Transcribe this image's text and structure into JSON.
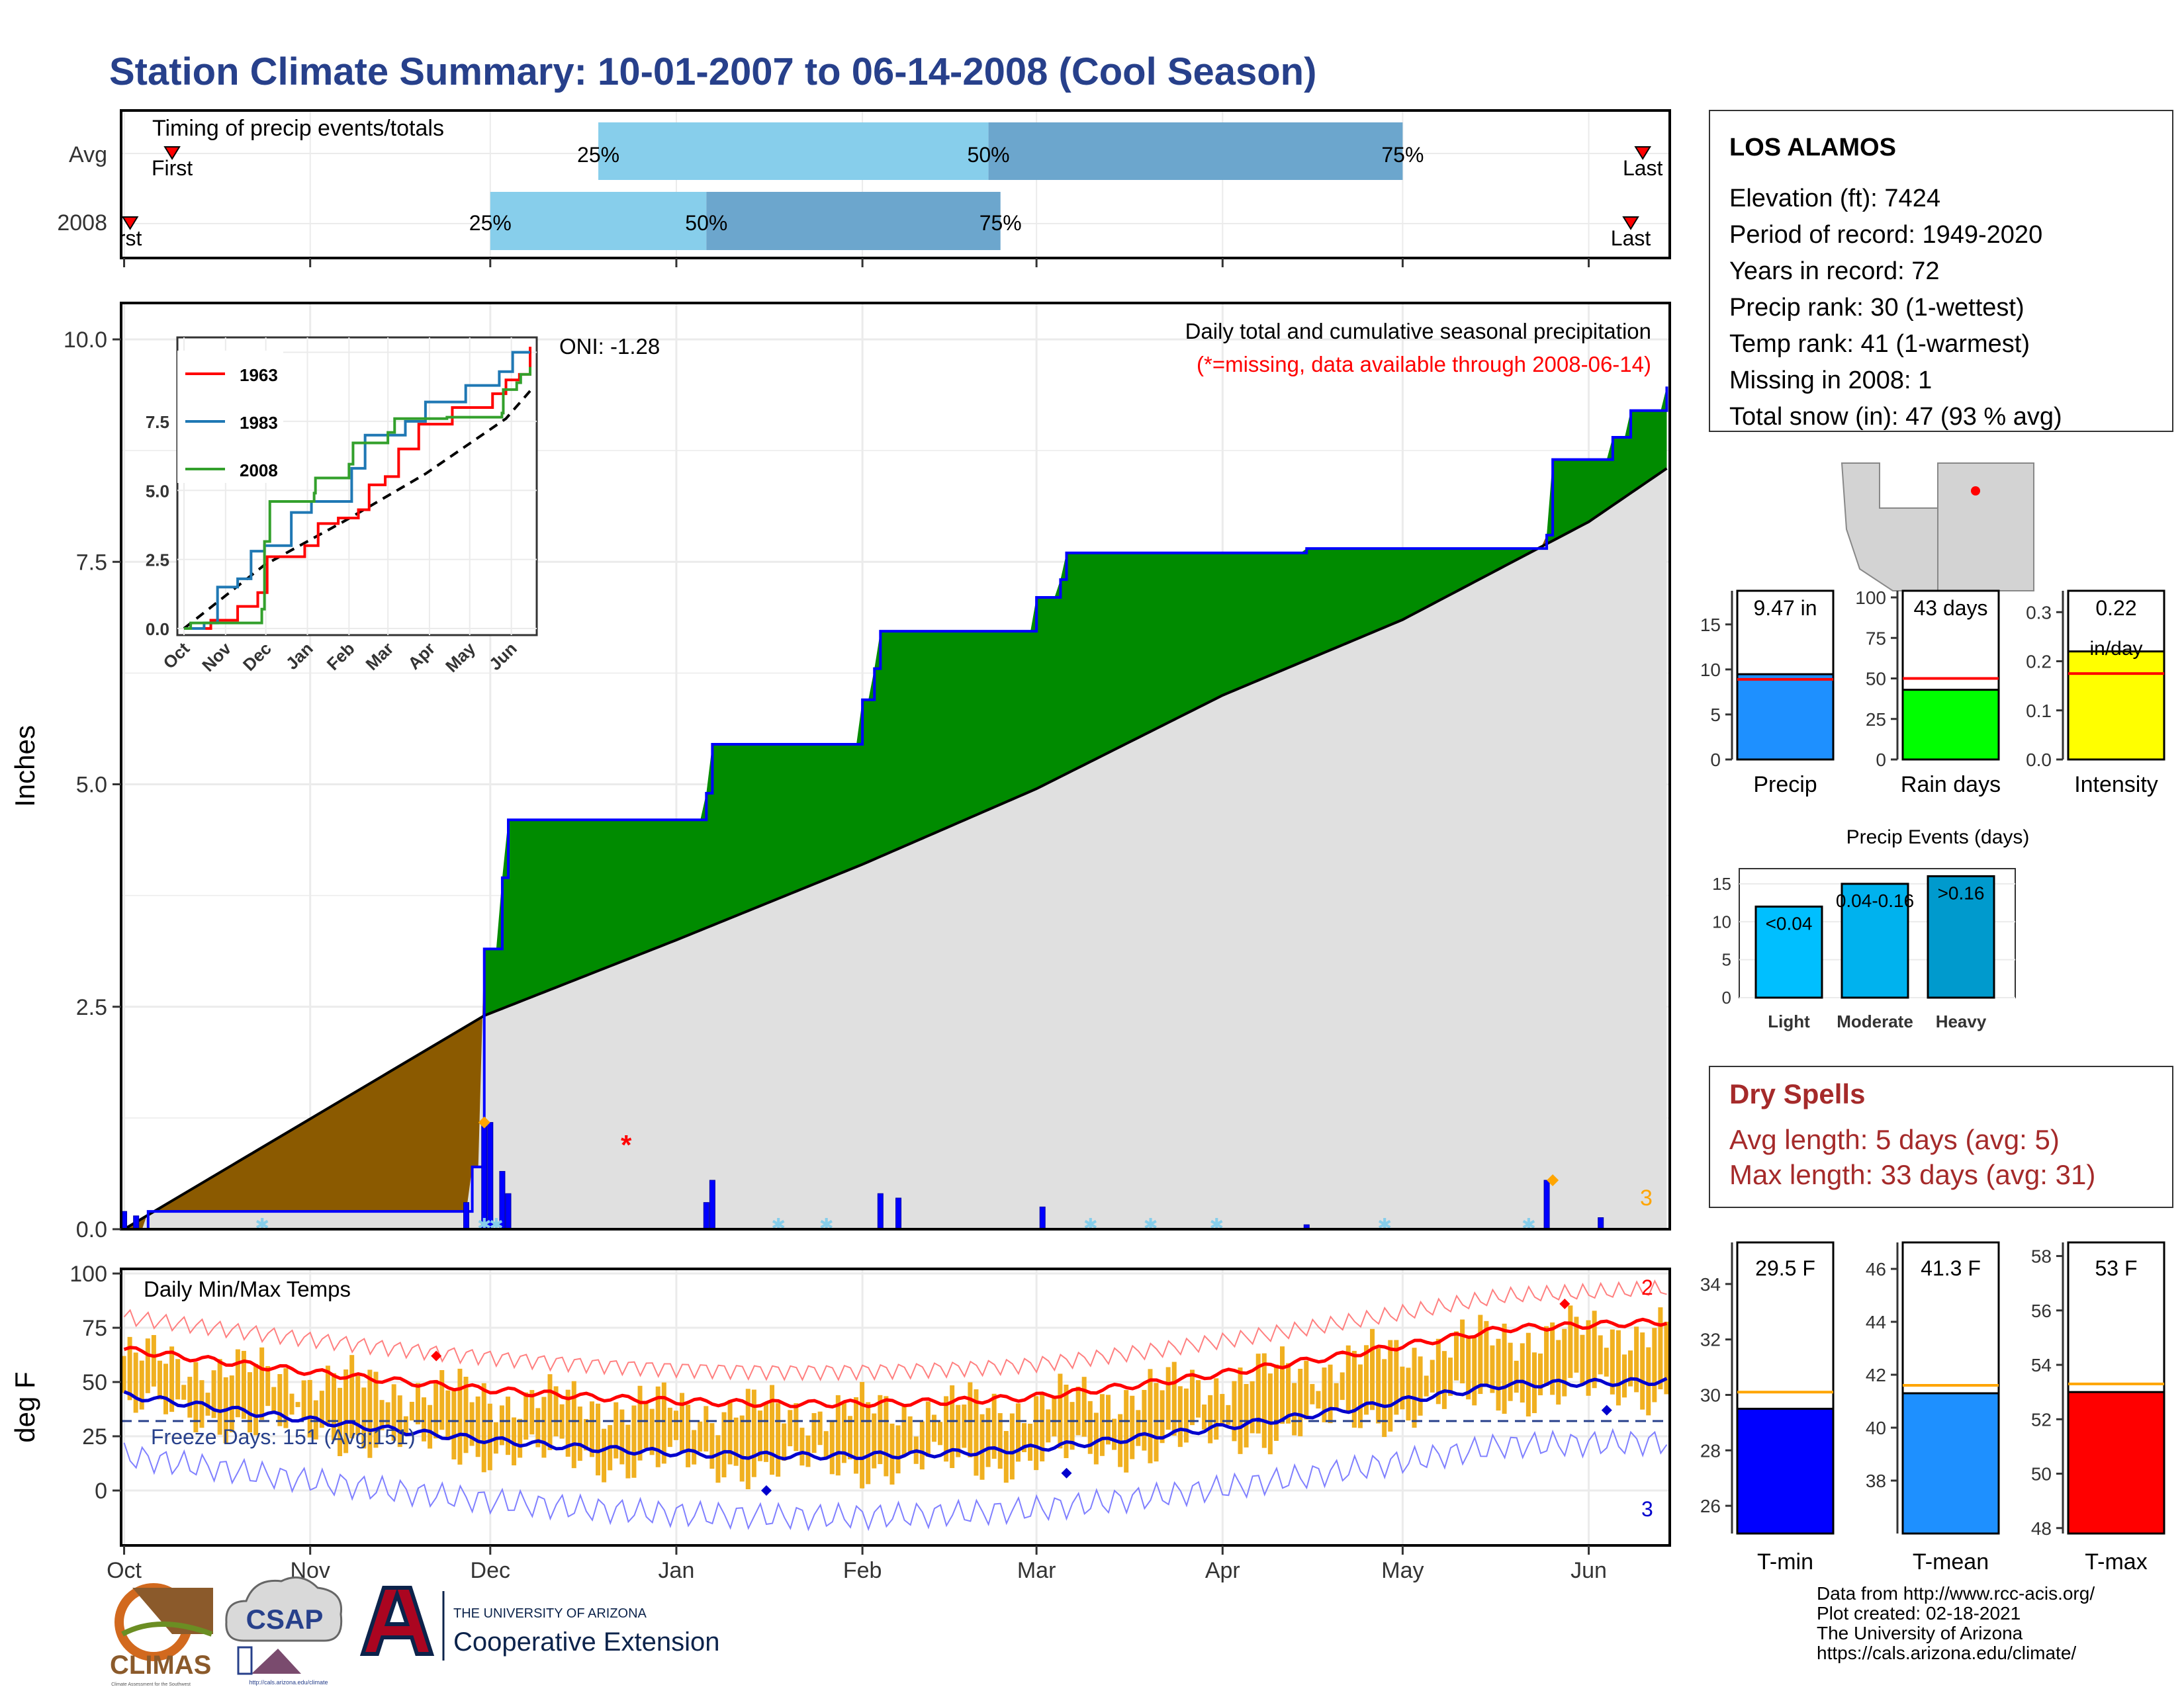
{
  "title": "Station Climate Summary: 10-01-2007 to 06-14-2008 (Cool Season)",
  "colors": {
    "title": "#27408b",
    "light_blue": "#87ceeb",
    "mid_blue": "#6ca6cd",
    "green": "#008b00",
    "brown": "#8b5a00",
    "gray_fill": "#e0e0e0",
    "bar_blue": "#0000ff",
    "orange_bar": "#f0b020",
    "red": "#ff0000",
    "dark_red": "#a52a2a",
    "precip_blue": "#1e90ff",
    "rain_green": "#00ff00",
    "intensity_yellow": "#ffff00",
    "light_evt": "#00bfff",
    "mod_evt": "#00b2ee",
    "heavy_evt": "#009acd"
  },
  "timing": {
    "label": "Timing of precip events/totals",
    "rows": [
      {
        "name": "Avg",
        "first_label": "First",
        "last_label": "Last",
        "p25_label": "25%",
        "p50_label": "50%",
        "p75_label": "75%",
        "first_day": 8,
        "last_day": 253,
        "p25_day": 79,
        "p50_day": 144,
        "p75_day": 213
      },
      {
        "name": "2008",
        "first_label": "rst",
        "last_label": "Last",
        "p25_label": "25%",
        "p50_label": "50%",
        "p75_label": "75%",
        "first_day": 1,
        "last_day": 251,
        "p25_day": 61,
        "p50_day": 97,
        "p75_day": 146
      }
    ]
  },
  "precip_panel": {
    "ylabel": "Inches",
    "subtitle": "Daily total and cumulative seasonal precipitation",
    "missing_note": "(*=missing, data available through 2008-06-14)",
    "oni": "ONI: -1.28",
    "missing_marker": "*",
    "corner_count": "3"
  },
  "inset": {
    "legend": [
      {
        "name": "1963",
        "color": "#ff0000"
      },
      {
        "name": "1983",
        "color": "#1f78b4"
      },
      {
        "name": "2008",
        "color": "#33a02c"
      }
    ],
    "yticks": [
      "0.0",
      "2.5",
      "5.0",
      "7.5"
    ],
    "xticks": [
      "Oct",
      "Nov",
      "Dec",
      "Jan",
      "Feb",
      "Mar",
      "Apr",
      "May",
      "Jun"
    ]
  },
  "temp_panel": {
    "label": "Daily Min/Max Temps",
    "ylabel": "deg F",
    "freeze_text": "Freeze Days: 151 (Avg:151)",
    "count_max": "2",
    "count_min": "3"
  },
  "months": [
    "Oct",
    "Nov",
    "Dec",
    "Jan",
    "Feb",
    "Mar",
    "Apr",
    "May",
    "Jun"
  ],
  "station": {
    "name": "LOS ALAMOS",
    "lines": [
      "Elevation (ft): 7424",
      "Period of record: 1949-2020",
      "Years in record: 72",
      "Precip rank: 30 (1-wettest)",
      "Temp rank: 41 (1-warmest)",
      "Missing in 2008: 1",
      "Total snow (in): 47 (93 % avg)"
    ]
  },
  "summary_bars": [
    {
      "name": "Precip",
      "value_label": "9.47 in",
      "value": 9.47,
      "avg": 8.9,
      "max": 18,
      "ticks": [
        "0",
        "5",
        "10",
        "15"
      ],
      "tick_vals": [
        0,
        5,
        10,
        15
      ]
    },
    {
      "name": "Rain days",
      "value_label": "43 days",
      "value": 43,
      "avg": 50,
      "max": 100,
      "ticks": [
        "0",
        "25",
        "50",
        "75",
        "100"
      ],
      "tick_vals": [
        0,
        25,
        50,
        75,
        100
      ]
    },
    {
      "name": "Intensity",
      "value_label": "0.22",
      "unit_label": "in/day",
      "value": 0.22,
      "avg": 0.175,
      "max": 0.33,
      "ticks": [
        "0.0",
        "0.1",
        "0.2",
        "0.3"
      ],
      "tick_vals": [
        0,
        0.1,
        0.2,
        0.3
      ]
    }
  ],
  "events": {
    "title": "Precip Events (days)",
    "bars": [
      {
        "name": "Light",
        "label": "<0.04",
        "value": 12
      },
      {
        "name": "Moderate",
        "label": "0.04-0.16",
        "value": 15
      },
      {
        "name": "Heavy",
        "label": ">0.16",
        "value": 16
      }
    ],
    "ticks": [
      "0",
      "5",
      "10",
      "15"
    ]
  },
  "dry_spells": {
    "title": "Dry Spells",
    "avg_line": "Avg length: 5 days (avg: 5)",
    "max_line": "Max length: 33 days (avg: 31)"
  },
  "temp_bars": [
    {
      "name": "T-min",
      "value_label": "29.5 F",
      "value": 29.5,
      "avg": 30.1,
      "min": 25,
      "max": 35.5,
      "ticks": [
        "26",
        "28",
        "30",
        "32",
        "34"
      ],
      "tick_vals": [
        26,
        28,
        30,
        32,
        34
      ],
      "color": "#0000ff"
    },
    {
      "name": "T-mean",
      "value_label": "41.3 F",
      "value": 41.3,
      "avg": 41.6,
      "min": 36,
      "max": 47,
      "ticks": [
        "38",
        "40",
        "42",
        "44",
        "46"
      ],
      "tick_vals": [
        38,
        40,
        42,
        44,
        46
      ],
      "color": "#1e90ff"
    },
    {
      "name": "T-max",
      "value_label": "53 F",
      "value": 53,
      "avg": 53.3,
      "min": 47.8,
      "max": 58.5,
      "ticks": [
        "48",
        "50",
        "52",
        "54",
        "56",
        "58"
      ],
      "tick_vals": [
        48,
        50,
        52,
        54,
        56,
        58
      ],
      "color": "#ff0000"
    }
  ],
  "footer": {
    "lines": [
      "Data from http://www.rcc-acis.org/",
      "Plot created: 02-18-2021",
      "The University of Arizona",
      "https://cals.arizona.edu/climate/"
    ],
    "climas": "CLIMAS",
    "climas_sub": "Climate Assessment for the Southwest",
    "csap": "CSAP",
    "csap_url": "http://cals.arizona.edu/climate",
    "ua_small": "THE UNIVERSITY OF ARIZONA",
    "ua_big": "Cooperative Extension"
  },
  "chart_data": {
    "type": "area",
    "x_unit": "date",
    "season": "2007-10-01 to 2008-06-14",
    "cumulative_2008": [
      [
        "2007-10-01",
        0.0
      ],
      [
        "2007-10-05",
        0.2
      ],
      [
        "2007-11-28",
        0.7
      ],
      [
        "2007-11-30",
        3.15
      ],
      [
        "2007-12-03",
        3.95
      ],
      [
        "2007-12-04",
        4.6
      ],
      [
        "2008-01-06",
        4.9
      ],
      [
        "2008-01-07",
        5.45
      ],
      [
        "2008-02-01",
        5.95
      ],
      [
        "2008-02-03",
        6.3
      ],
      [
        "2008-02-04",
        6.72
      ],
      [
        "2008-03-01",
        7.1
      ],
      [
        "2008-03-05",
        7.3
      ],
      [
        "2008-03-06",
        7.6
      ],
      [
        "2008-04-15",
        7.65
      ],
      [
        "2008-05-25",
        7.8
      ],
      [
        "2008-05-26",
        8.65
      ],
      [
        "2008-06-05",
        8.9
      ],
      [
        "2008-06-08",
        9.2
      ],
      [
        "2008-06-14",
        9.47
      ]
    ],
    "cumulative_avg": [
      [
        "2007-10-01",
        0.0
      ],
      [
        "2007-11-30",
        2.4
      ],
      [
        "2008-01-01",
        3.25
      ],
      [
        "2008-02-01",
        4.1
      ],
      [
        "2008-03-01",
        4.95
      ],
      [
        "2008-04-01",
        6.0
      ],
      [
        "2008-05-01",
        6.85
      ],
      [
        "2008-06-01",
        7.95
      ],
      [
        "2008-06-14",
        8.55
      ]
    ],
    "daily_precip": [
      [
        "2007-10-01",
        0.2
      ],
      [
        "2007-10-03",
        0.15
      ],
      [
        "2007-11-27",
        0.3
      ],
      [
        "2007-11-30",
        1.2
      ],
      [
        "2007-12-01",
        1.2
      ],
      [
        "2007-12-03",
        0.65
      ],
      [
        "2007-12-04",
        0.4
      ],
      [
        "2008-01-06",
        0.3
      ],
      [
        "2008-01-07",
        0.55
      ],
      [
        "2008-02-04",
        0.4
      ],
      [
        "2008-02-07",
        0.35
      ],
      [
        "2008-03-02",
        0.25
      ],
      [
        "2008-04-15",
        0.05
      ],
      [
        "2008-05-25",
        0.55
      ],
      [
        "2008-06-03",
        0.13
      ]
    ],
    "ylim": [
      0,
      10
    ],
    "yticks": [
      0,
      2.5,
      5,
      7.5,
      10
    ]
  }
}
